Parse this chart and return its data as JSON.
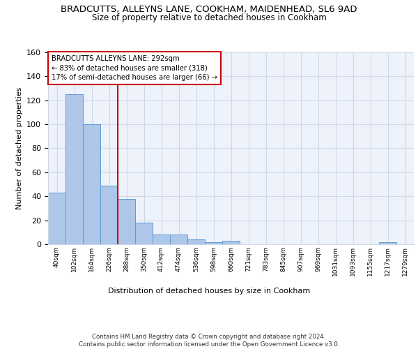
{
  "title": "BRADCUTTS, ALLEYNS LANE, COOKHAM, MAIDENHEAD, SL6 9AD",
  "subtitle": "Size of property relative to detached houses in Cookham",
  "xlabel_bottom": "Distribution of detached houses by size in Cookham",
  "ylabel": "Number of detached properties",
  "bar_values": [
    43,
    125,
    100,
    49,
    38,
    18,
    8,
    8,
    4,
    2,
    3,
    0,
    0,
    0,
    0,
    0,
    0,
    0,
    0,
    2,
    0
  ],
  "bin_labels": [
    "40sqm",
    "102sqm",
    "164sqm",
    "226sqm",
    "288sqm",
    "350sqm",
    "412sqm",
    "474sqm",
    "536sqm",
    "598sqm",
    "660sqm",
    "721sqm",
    "783sqm",
    "845sqm",
    "907sqm",
    "969sqm",
    "1031sqm",
    "1093sqm",
    "1155sqm",
    "1217sqm",
    "1279sqm"
  ],
  "bar_color": "#aec6e8",
  "bar_edge_color": "#5b9bd5",
  "vline_color": "#cc0000",
  "annotation_text": "BRADCUTTS ALLEYNS LANE: 292sqm\n← 83% of detached houses are smaller (318)\n17% of semi-detached houses are larger (66) →",
  "annotation_box_color": "white",
  "annotation_box_edge": "#cc0000",
  "ylim": [
    0,
    160
  ],
  "yticks": [
    0,
    20,
    40,
    60,
    80,
    100,
    120,
    140,
    160
  ],
  "grid_color": "#d0d8e8",
  "bg_color": "#eef2fa",
  "footer": "Contains HM Land Registry data © Crown copyright and database right 2024.\nContains public sector information licensed under the Open Government Licence v3.0."
}
